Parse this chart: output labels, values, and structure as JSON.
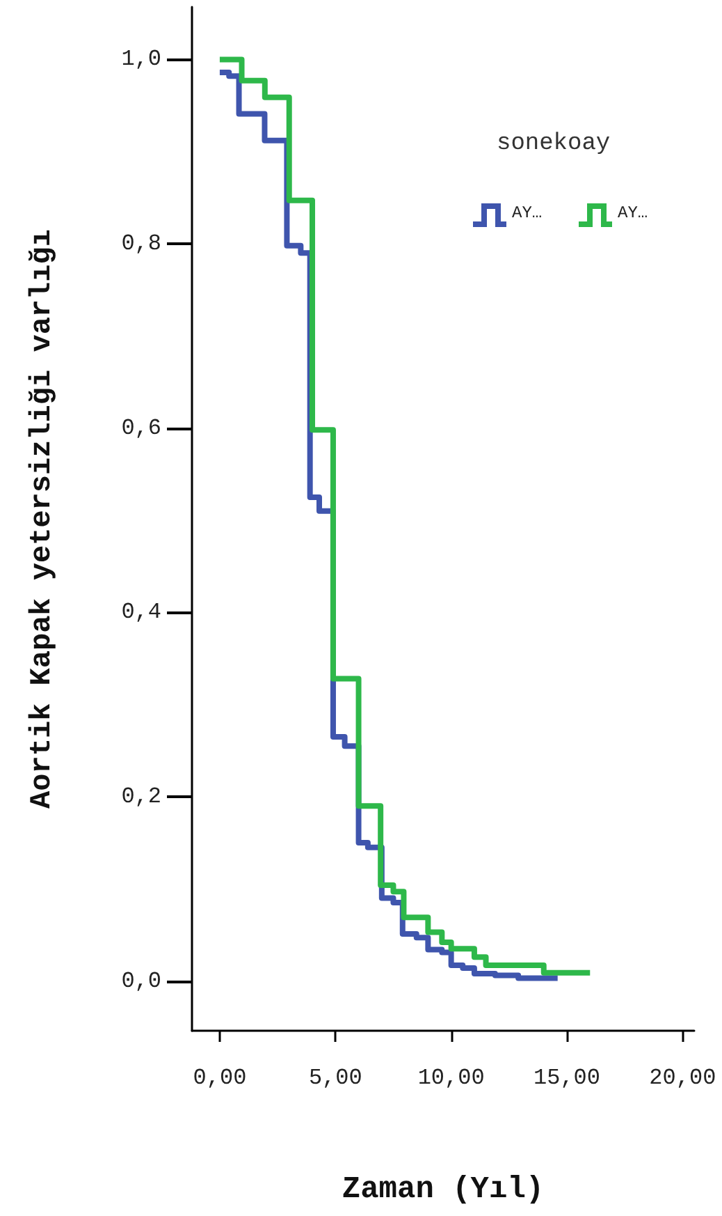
{
  "chart_data": {
    "type": "step",
    "xlabel": "Zaman (Yıl)",
    "ylabel": "Aortik Kapak yetersizliği varlığı",
    "legend_title": "sonekoay",
    "series": [
      {
        "name": "AY…",
        "color": "#3f55ad",
        "x": [
          0,
          0.4,
          0.83,
          1.94,
          2.9,
          3.5,
          3.9,
          4.3,
          4.9,
          5.4,
          6.0,
          6.4,
          7.0,
          7.5,
          7.9,
          8.5,
          9.0,
          9.6,
          10.0,
          10.5,
          11.0,
          11.9,
          12.9,
          14.6
        ],
        "values": [
          0.986,
          0.982,
          0.941,
          0.912,
          0.798,
          0.79,
          0.525,
          0.51,
          0.265,
          0.255,
          0.15,
          0.145,
          0.09,
          0.085,
          0.051,
          0.047,
          0.034,
          0.031,
          0.017,
          0.014,
          0.008,
          0.006,
          0.003,
          0.003
        ]
      },
      {
        "name": "AY…",
        "color": "#2eb84a",
        "x": [
          0,
          0.95,
          1.95,
          3.0,
          4.0,
          4.9,
          6.0,
          6.95,
          7.5,
          7.95,
          9.0,
          9.6,
          10.0,
          11.0,
          11.5,
          14.0,
          16.0
        ],
        "values": [
          1.0,
          0.977,
          0.959,
          0.847,
          0.598,
          0.328,
          0.19,
          0.104,
          0.097,
          0.069,
          0.053,
          0.042,
          0.035,
          0.026,
          0.017,
          0.009,
          0.009
        ]
      }
    ],
    "xlim": [
      -1.2,
      20.5
    ],
    "xticks": [
      {
        "value": 0,
        "label": "0,00"
      },
      {
        "value": 5,
        "label": "5,00"
      },
      {
        "value": 10,
        "label": "10,00"
      },
      {
        "value": 15,
        "label": "15,00"
      },
      {
        "value": 20,
        "label": "20,00"
      }
    ],
    "ylim": [
      -0.054,
      1.057
    ],
    "yticks": [
      {
        "value": 0,
        "label": "0,0"
      },
      {
        "value": 0.2,
        "label": "0,2"
      },
      {
        "value": 0.4,
        "label": "0,4"
      },
      {
        "value": 0.6,
        "label": "0,6"
      },
      {
        "value": 0.8,
        "label": "0,8"
      },
      {
        "value": 1.0,
        "label": "1,0"
      }
    ],
    "legend": "top right",
    "grid": false,
    "line_style": "solid",
    "marker": "none"
  }
}
